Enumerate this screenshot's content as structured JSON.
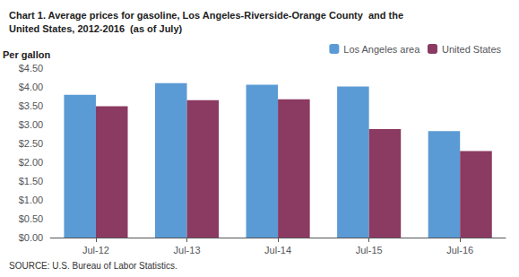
{
  "chart_data": {
    "type": "bar",
    "title": "Chart 1. Average prices for gasoline, Los Angeles-Riverside-Orange County  and the\nUnited States, 2012-2016  (as of July)",
    "ylabel": "Per gallon",
    "annotations": [
      "SOURCE: U.S. Bureau of Labor Statistics."
    ],
    "categories": [
      "Jul-12",
      "Jul-13",
      "Jul-14",
      "Jul-15",
      "Jul-16"
    ],
    "series": [
      {
        "name": "Los Angeles area",
        "color": "#5B9BD5",
        "values": [
          3.79,
          4.1,
          4.06,
          4.01,
          2.83
        ]
      },
      {
        "name": "United States",
        "color": "#8B3A62",
        "values": [
          3.49,
          3.65,
          3.67,
          2.88,
          2.3
        ]
      }
    ],
    "ylim": [
      0,
      4.5
    ],
    "yticks": [
      {
        "value": 0.0,
        "label": "$0.00"
      },
      {
        "value": 0.5,
        "label": "$0.50"
      },
      {
        "value": 1.0,
        "label": "$1.00"
      },
      {
        "value": 1.5,
        "label": "$1.50"
      },
      {
        "value": 2.0,
        "label": "$2.00"
      },
      {
        "value": 2.5,
        "label": "$2.50"
      },
      {
        "value": 3.0,
        "label": "$3.00"
      },
      {
        "value": 3.5,
        "label": "$3.50"
      },
      {
        "value": 4.0,
        "label": "$4.00"
      },
      {
        "value": 4.5,
        "label": "$4.50"
      }
    ],
    "grid": false,
    "legend": "upper right"
  }
}
